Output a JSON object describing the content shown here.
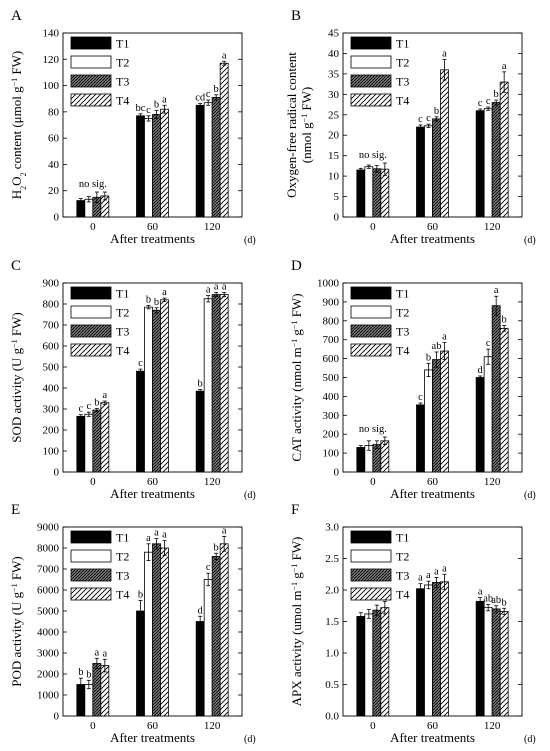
{
  "legend_entries": [
    "T1",
    "T2",
    "T3",
    "T4"
  ],
  "colors": {
    "bar_fill": "#000000",
    "t2_fill": "#ffffff",
    "t3_fill": "#888888",
    "t4_fill": "#ffffff",
    "axis": "#000000"
  },
  "chart_data": [
    {
      "panel_label": "A",
      "type": "bar",
      "categories": [
        "0",
        "60",
        "120"
      ],
      "xlabel": "After treatments",
      "xunit": "(d)",
      "ylabel_parts": [
        "H",
        "2",
        "O",
        "2",
        " content (μmol g",
        "−1",
        " FW)"
      ],
      "ylim": [
        0,
        140
      ],
      "yticks": [
        0,
        20,
        40,
        60,
        80,
        100,
        120,
        140
      ],
      "series": [
        {
          "name": "T1",
          "values": [
            12.5,
            77,
            85
          ],
          "errors": [
            1.5,
            1.5,
            1.5
          ]
        },
        {
          "name": "T2",
          "values": [
            13.5,
            75,
            87
          ],
          "errors": [
            2,
            2,
            2
          ]
        },
        {
          "name": "T3",
          "values": [
            15,
            78,
            91
          ],
          "errors": [
            4,
            3,
            2
          ]
        },
        {
          "name": "T4",
          "values": [
            16,
            82,
            117
          ],
          "errors": [
            3,
            3,
            1.5
          ]
        }
      ],
      "letters": [
        [
          "",
          "",
          "",
          ""
        ],
        [
          "bc",
          "c",
          "b",
          "a"
        ],
        [
          "cd",
          "c",
          "b",
          "a"
        ]
      ],
      "group_notes": [
        "no sig.",
        "",
        ""
      ]
    },
    {
      "panel_label": "B",
      "type": "bar",
      "categories": [
        "0",
        "60",
        "120"
      ],
      "xlabel": "After treatments",
      "xunit": "(d)",
      "ylabel_lines": [
        [
          "Oxygen-free radical content"
        ],
        [
          "(nmol g",
          "−1",
          " FW)"
        ]
      ],
      "ylim": [
        0,
        45
      ],
      "yticks": [
        0,
        5,
        10,
        15,
        20,
        25,
        30,
        35,
        40,
        45
      ],
      "series": [
        {
          "name": "T1",
          "values": [
            11.5,
            22,
            26
          ],
          "errors": [
            0.4,
            0.5,
            0.4
          ]
        },
        {
          "name": "T2",
          "values": [
            12.3,
            22.3,
            26.5
          ],
          "errors": [
            0.4,
            0.4,
            0.4
          ]
        },
        {
          "name": "T3",
          "values": [
            11.8,
            24,
            28
          ],
          "errors": [
            0.8,
            0.5,
            0.6
          ]
        },
        {
          "name": "T4",
          "values": [
            11.7,
            36,
            33
          ],
          "errors": [
            1.5,
            2.5,
            2.5
          ]
        }
      ],
      "letters": [
        [
          "",
          "",
          "",
          ""
        ],
        [
          "c",
          "c",
          "b",
          "a"
        ],
        [
          "c",
          "c",
          "b",
          "a"
        ]
      ],
      "group_notes": [
        "no sig.",
        "",
        ""
      ]
    },
    {
      "panel_label": "C",
      "type": "bar",
      "categories": [
        "0",
        "60",
        "120"
      ],
      "xlabel": "After treatments",
      "xunit": "(d)",
      "ylabel_parts": [
        "SOD activity (U g",
        "−1",
        " FW)"
      ],
      "ylim": [
        0,
        900
      ],
      "yticks": [
        0,
        100,
        200,
        300,
        400,
        500,
        600,
        700,
        800,
        900
      ],
      "series": [
        {
          "name": "T1",
          "values": [
            265,
            480,
            385
          ],
          "errors": [
            8,
            10,
            8
          ]
        },
        {
          "name": "T2",
          "values": [
            275,
            785,
            825
          ],
          "errors": [
            10,
            8,
            15
          ]
        },
        {
          "name": "T3",
          "values": [
            295,
            770,
            845
          ],
          "errors": [
            8,
            12,
            10
          ]
        },
        {
          "name": "T4",
          "values": [
            330,
            820,
            845
          ],
          "errors": [
            8,
            8,
            10
          ]
        }
      ],
      "letters": [
        [
          "c",
          "c",
          "b",
          "a"
        ],
        [
          "c",
          "b",
          "b",
          "a"
        ],
        [
          "b",
          "a",
          "a",
          "a"
        ]
      ],
      "group_notes": [
        "",
        "",
        ""
      ]
    },
    {
      "panel_label": "D",
      "type": "bar",
      "categories": [
        "0",
        "60",
        "120"
      ],
      "xlabel": "After treatments",
      "xunit": "(d)",
      "ylabel_parts": [
        "CAT activity (nmol m",
        "−1",
        " g",
        "−1",
        " FW)"
      ],
      "ylim": [
        0,
        1000
      ],
      "yticks": [
        0,
        100,
        200,
        300,
        400,
        500,
        600,
        700,
        800,
        900,
        1000
      ],
      "series": [
        {
          "name": "T1",
          "values": [
            130,
            355,
            500
          ],
          "errors": [
            10,
            10,
            8
          ]
        },
        {
          "name": "T2",
          "values": [
            140,
            540,
            610
          ],
          "errors": [
            25,
            35,
            40
          ]
        },
        {
          "name": "T3",
          "values": [
            145,
            595,
            880
          ],
          "errors": [
            20,
            40,
            50
          ]
        },
        {
          "name": "T4",
          "values": [
            165,
            640,
            760
          ],
          "errors": [
            20,
            45,
            15
          ]
        }
      ],
      "letters": [
        [
          "",
          "",
          "",
          ""
        ],
        [
          "c",
          "b",
          "ab",
          "a"
        ],
        [
          "d",
          "c",
          "a",
          "b"
        ]
      ],
      "group_notes": [
        "no sig.",
        "",
        ""
      ]
    },
    {
      "panel_label": "E",
      "type": "bar",
      "categories": [
        "0",
        "60",
        "120"
      ],
      "xlabel": "After treatments",
      "xunit": "(d)",
      "ylabel_parts": [
        "POD activity (U g",
        "−1",
        " FW)"
      ],
      "ylim": [
        0,
        9000
      ],
      "yticks": [
        0,
        1000,
        2000,
        3000,
        4000,
        5000,
        6000,
        7000,
        8000,
        9000
      ],
      "series": [
        {
          "name": "T1",
          "values": [
            1500,
            5000,
            4500
          ],
          "errors": [
            300,
            500,
            250
          ]
        },
        {
          "name": "T2",
          "values": [
            1500,
            7800,
            6500
          ],
          "errors": [
            200,
            400,
            300
          ]
        },
        {
          "name": "T3",
          "values": [
            2500,
            8200,
            7600
          ],
          "errors": [
            250,
            250,
            150
          ]
        },
        {
          "name": "T4",
          "values": [
            2400,
            8000,
            8200
          ],
          "errors": [
            300,
            350,
            350
          ]
        }
      ],
      "letters": [
        [
          "b",
          "b",
          "a",
          "a"
        ],
        [
          "b",
          "a",
          "a",
          "a"
        ],
        [
          "d",
          "c",
          "b",
          "a"
        ]
      ],
      "group_notes": [
        "",
        "",
        ""
      ]
    },
    {
      "panel_label": "F",
      "type": "bar",
      "categories": [
        "0",
        "60",
        "120"
      ],
      "xlabel": "After treatments",
      "xunit": "(d)",
      "ylabel_parts": [
        "APX activity (umol m",
        "−1",
        " g",
        "−1",
        " FW)"
      ],
      "ylim": [
        0,
        3
      ],
      "yticks": [
        0,
        0.5,
        1.0,
        1.5,
        2.0,
        2.5,
        3.0
      ],
      "ytick_labels": [
        "0.0",
        "0.5",
        "1.0",
        "1.5",
        "2.0",
        "2.5",
        "3.0"
      ],
      "series": [
        {
          "name": "T1",
          "values": [
            1.58,
            2.02,
            1.82
          ],
          "errors": [
            0.06,
            0.08,
            0.06
          ]
        },
        {
          "name": "T2",
          "values": [
            1.62,
            2.08,
            1.72
          ],
          "errors": [
            0.07,
            0.06,
            0.05
          ]
        },
        {
          "name": "T3",
          "values": [
            1.68,
            2.12,
            1.7
          ],
          "errors": [
            0.08,
            0.08,
            0.05
          ]
        },
        {
          "name": "T4",
          "values": [
            1.72,
            2.13,
            1.66
          ],
          "errors": [
            0.1,
            0.12,
            0.05
          ]
        }
      ],
      "letters": [
        [
          "",
          "",
          "",
          ""
        ],
        [
          "a",
          "a",
          "a",
          "a"
        ],
        [
          "a",
          "ab",
          "ab",
          "b"
        ]
      ],
      "group_notes": [
        "no sig.",
        "",
        ""
      ]
    }
  ]
}
